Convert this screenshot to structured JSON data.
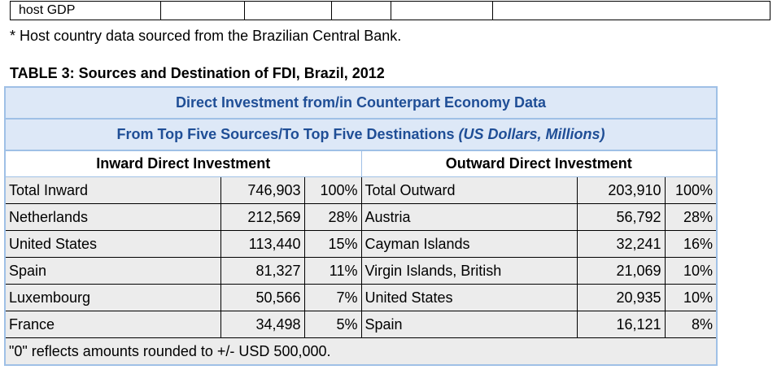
{
  "prev_table": {
    "row_label": "host GDP"
  },
  "footnote": "* Host country data sourced from the Brazilian Central Bank.",
  "table_title": "TABLE 3:  Sources and Destination of FDI, Brazil, 2012",
  "header": {
    "line1": "Direct Investment from/in Counterpart Economy Data",
    "line2": "From Top Five Sources/To Top Five Destinations ",
    "line2_unit": "(US Dollars, Millions)"
  },
  "inward_header": "Inward Direct Investment",
  "outward_header": "Outward Direct Investment",
  "rows": [
    {
      "in_label": "Total Inward",
      "in_value": "746,903",
      "in_pct": "100%",
      "out_label": "Total Outward",
      "out_value": "203,910",
      "out_pct": "100%"
    },
    {
      "in_label": "Netherlands",
      "in_value": "212,569",
      "in_pct": "28%",
      "out_label": "Austria",
      "out_value": "56,792",
      "out_pct": "28%"
    },
    {
      "in_label": "United States",
      "in_value": "113,440",
      "in_pct": "15%",
      "out_label": "Cayman Islands",
      "out_value": "32,241",
      "out_pct": "16%"
    },
    {
      "in_label": "Spain",
      "in_value": "81,327",
      "in_pct": "11%",
      "out_label": "Virgin Islands, British",
      "out_value": "21,069",
      "out_pct": "10%"
    },
    {
      "in_label": "Luxembourg",
      "in_value": "50,566",
      "in_pct": "7%",
      "out_label": "United States",
      "out_value": "20,935",
      "out_pct": "10%"
    },
    {
      "in_label": "France",
      "in_value": "34,498",
      "in_pct": "5%",
      "out_label": "Spain",
      "out_value": "16,121",
      "out_pct": "8%"
    }
  ],
  "table_note": "\"0\" reflects amounts rounded to +/- USD 500,000."
}
